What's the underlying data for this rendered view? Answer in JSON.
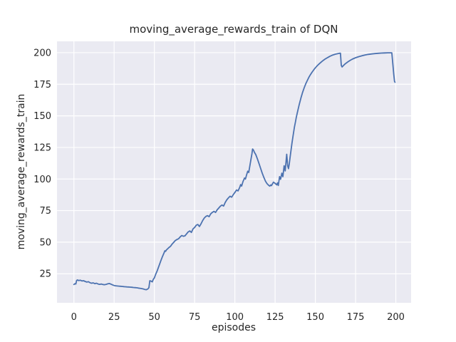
{
  "chart_data": {
    "type": "line",
    "title": "moving_average_rewards_train of DQN",
    "xlabel": "episodes",
    "ylabel": "moving_average_rewards_train",
    "x_ticks": [
      0,
      25,
      50,
      75,
      100,
      125,
      150,
      175,
      200
    ],
    "y_ticks": [
      25,
      50,
      75,
      100,
      125,
      150,
      175,
      200
    ],
    "xlim": [
      -10.5,
      209.5
    ],
    "ylim": [
      2,
      209
    ],
    "grid": true,
    "legend_position": "none",
    "style": {
      "figure_bg": "#ffffff",
      "axes_bg": "#eaeaf2",
      "grid_color": "#ffffff",
      "line_color": "#4c72b0",
      "text_color": "#262626"
    },
    "series": [
      {
        "name": "moving_average_rewards_train",
        "points": [
          [
            0,
            16.5
          ],
          [
            0.6,
            17.1
          ],
          [
            1.2,
            16.9
          ],
          [
            1.7,
            19.7
          ],
          [
            2.3,
            20.1
          ],
          [
            3,
            19.6
          ],
          [
            4,
            19.9
          ],
          [
            5,
            19.3
          ],
          [
            6,
            19.5
          ],
          [
            7,
            18.9
          ],
          [
            8,
            18.4
          ],
          [
            9,
            18.7
          ],
          [
            10,
            17.9
          ],
          [
            11,
            17.5
          ],
          [
            12,
            17.8
          ],
          [
            13,
            17.2
          ],
          [
            14,
            17.5
          ],
          [
            15,
            16.9
          ],
          [
            16,
            16.6
          ],
          [
            17,
            16.9
          ],
          [
            18,
            16.5
          ],
          [
            19,
            16.3
          ],
          [
            20,
            16.6
          ],
          [
            21,
            17.0
          ],
          [
            22,
            17.3
          ],
          [
            23,
            16.8
          ],
          [
            24,
            16.2
          ],
          [
            25,
            15.7
          ],
          [
            26,
            15.5
          ],
          [
            27,
            15.3
          ],
          [
            28,
            15.2
          ],
          [
            29,
            15.1
          ],
          [
            30,
            15.0
          ],
          [
            31,
            14.8
          ],
          [
            32,
            14.7
          ],
          [
            33,
            14.6
          ],
          [
            34,
            14.5
          ],
          [
            35,
            14.4
          ],
          [
            36,
            14.3
          ],
          [
            37,
            14.1
          ],
          [
            38,
            14.0
          ],
          [
            39,
            13.9
          ],
          [
            40,
            13.7
          ],
          [
            41,
            13.5
          ],
          [
            42,
            13.3
          ],
          [
            43,
            13.0
          ],
          [
            44,
            12.6
          ],
          [
            45,
            12.4
          ],
          [
            46,
            13.0
          ],
          [
            46.6,
            14.0
          ],
          [
            47.2,
            19.5
          ],
          [
            48,
            19.1
          ],
          [
            48.7,
            18.6
          ],
          [
            49.3,
            20.5
          ],
          [
            50,
            21.8
          ],
          [
            50.7,
            24.3
          ],
          [
            51.5,
            26.6
          ],
          [
            52,
            28.2
          ],
          [
            53,
            31.8
          ],
          [
            54,
            35.2
          ],
          [
            55,
            38.6
          ],
          [
            56,
            41.5
          ],
          [
            56.5,
            43.2
          ],
          [
            57,
            42.8
          ],
          [
            57.5,
            43.9
          ],
          [
            58,
            44.4
          ],
          [
            59,
            45.7
          ],
          [
            60,
            46.7
          ],
          [
            61,
            48.5
          ],
          [
            62,
            49.9
          ],
          [
            63,
            51.3
          ],
          [
            64,
            52.1
          ],
          [
            65,
            52.7
          ],
          [
            66,
            54.1
          ],
          [
            67,
            55.3
          ],
          [
            68,
            54.7
          ],
          [
            69,
            55.0
          ],
          [
            70,
            56.6
          ],
          [
            71,
            58.1
          ],
          [
            72,
            58.9
          ],
          [
            73,
            57.7
          ],
          [
            74,
            60.5
          ],
          [
            75,
            61.7
          ],
          [
            76,
            63.4
          ],
          [
            77,
            64.0
          ],
          [
            78,
            62.4
          ],
          [
            79,
            64.6
          ],
          [
            80,
            67.1
          ],
          [
            81,
            69.1
          ],
          [
            82,
            70.4
          ],
          [
            83,
            71.0
          ],
          [
            84,
            70.2
          ],
          [
            85,
            72.4
          ],
          [
            86,
            73.6
          ],
          [
            87,
            74.4
          ],
          [
            88,
            73.5
          ],
          [
            89,
            75.6
          ],
          [
            90,
            77.0
          ],
          [
            91,
            78.5
          ],
          [
            92,
            79.4
          ],
          [
            93,
            78.6
          ],
          [
            94,
            81.5
          ],
          [
            95,
            83.5
          ],
          [
            96,
            85.1
          ],
          [
            97,
            86.4
          ],
          [
            98,
            85.6
          ],
          [
            99,
            87.6
          ],
          [
            100,
            89.3
          ],
          [
            101,
            91.3
          ],
          [
            102,
            90.6
          ],
          [
            103,
            93.3
          ],
          [
            103.6,
            95.6
          ],
          [
            104.2,
            94.4
          ],
          [
            105,
            97.8
          ],
          [
            106,
            100.8
          ],
          [
            106.6,
            100.0
          ],
          [
            107.3,
            103.3
          ],
          [
            108,
            106.2
          ],
          [
            108.6,
            105.2
          ],
          [
            109.2,
            109.5
          ],
          [
            110,
            115.5
          ],
          [
            110.6,
            120.0
          ],
          [
            111,
            123.8
          ],
          [
            111.6,
            122.8
          ],
          [
            112.2,
            121.0
          ],
          [
            113,
            119.3
          ],
          [
            114,
            115.9
          ],
          [
            115,
            112.3
          ],
          [
            116,
            108.4
          ],
          [
            117,
            104.7
          ],
          [
            118,
            101.3
          ],
          [
            119,
            98.3
          ],
          [
            120,
            96.3
          ],
          [
            121,
            95.0
          ],
          [
            121.7,
            94.4
          ],
          [
            122.3,
            95.3
          ],
          [
            122.8,
            94.8
          ],
          [
            123.4,
            96.3
          ],
          [
            124,
            97.5
          ],
          [
            125,
            96.6
          ],
          [
            126,
            95.4
          ],
          [
            126.5,
            96.9
          ],
          [
            127,
            94.9
          ],
          [
            127.8,
            101.9
          ],
          [
            128.4,
            99.8
          ],
          [
            129.2,
            104.6
          ],
          [
            129.8,
            101.9
          ],
          [
            130.6,
            110.5
          ],
          [
            131.3,
            106.4
          ],
          [
            132.2,
            119.6
          ],
          [
            132.8,
            110.5
          ],
          [
            133.3,
            108.2
          ],
          [
            133.8,
            112.0
          ],
          [
            134.3,
            117.0
          ],
          [
            134.9,
            123.0
          ],
          [
            135.5,
            128.5
          ],
          [
            136.2,
            134.5
          ],
          [
            137,
            141.0
          ],
          [
            137.6,
            145.0
          ],
          [
            138.2,
            149.0
          ],
          [
            139,
            153.5
          ],
          [
            140,
            159.0
          ],
          [
            141,
            164.0
          ],
          [
            142,
            168.3
          ],
          [
            143,
            172.0
          ],
          [
            144,
            175.2
          ],
          [
            145,
            178.0
          ],
          [
            146,
            180.5
          ],
          [
            147,
            182.7
          ],
          [
            148,
            184.7
          ],
          [
            149,
            186.4
          ],
          [
            150,
            188.0
          ],
          [
            151,
            189.4
          ],
          [
            152,
            190.7
          ],
          [
            153,
            191.9
          ],
          [
            154,
            193.0
          ],
          [
            155,
            194.0
          ],
          [
            156,
            194.9
          ],
          [
            157,
            195.7
          ],
          [
            158,
            196.4
          ],
          [
            159,
            197.1
          ],
          [
            160,
            197.7
          ],
          [
            161,
            198.2
          ],
          [
            162,
            198.6
          ],
          [
            163,
            199.0
          ],
          [
            164,
            199.3
          ],
          [
            165,
            199.5
          ],
          [
            165.6,
            199.6
          ],
          [
            166.1,
            190.0
          ],
          [
            166.6,
            188.7
          ],
          [
            167.5,
            189.9
          ],
          [
            168.5,
            191.1
          ],
          [
            170,
            192.6
          ],
          [
            171.5,
            193.8
          ],
          [
            173,
            194.9
          ],
          [
            175,
            196.0
          ],
          [
            177,
            196.9
          ],
          [
            179,
            197.6
          ],
          [
            181,
            198.2
          ],
          [
            183,
            198.7
          ],
          [
            185,
            199.0
          ],
          [
            187,
            199.3
          ],
          [
            189,
            199.5
          ],
          [
            191,
            199.7
          ],
          [
            193,
            199.8
          ],
          [
            195,
            199.9
          ],
          [
            196.8,
            199.9
          ],
          [
            197.5,
            199.9
          ],
          [
            198.1,
            192.0
          ],
          [
            198.7,
            183.0
          ],
          [
            199.2,
            177.3
          ],
          [
            199.5,
            176.6
          ]
        ]
      }
    ]
  }
}
